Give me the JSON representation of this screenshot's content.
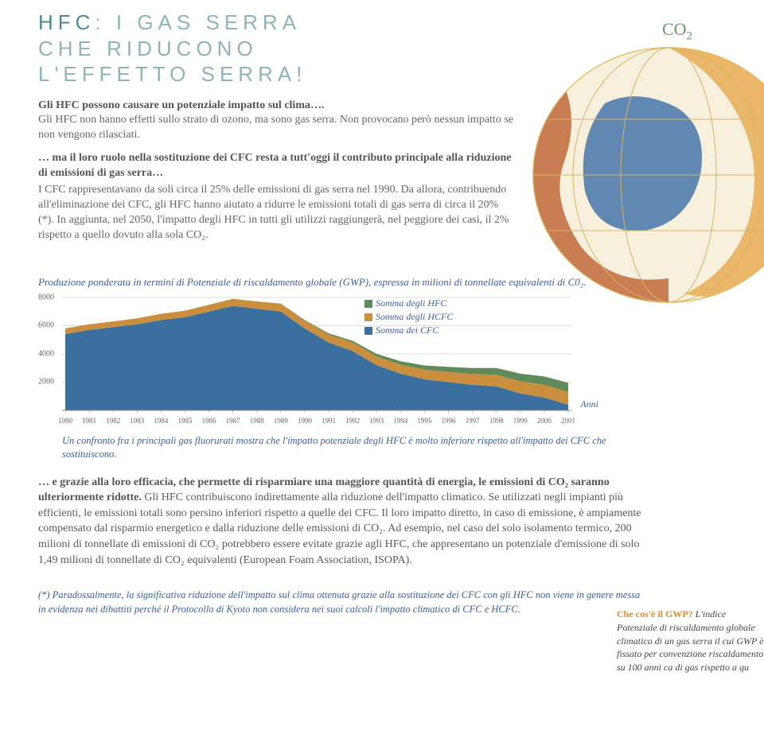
{
  "title": {
    "line1_accent": "HFC",
    "line1_rest": ": I GAS SERRA",
    "line2": "CHE RIDUCONO",
    "line3": "L'EFFETTO SERRA!",
    "accent_color": "#4d8c93",
    "rest_color": "#8db4b8"
  },
  "intro": {
    "bold1": "Gli HFC possono causare un potenziale impatto sul clima….",
    "plain1": "Gli HFC non hanno effetti sullo strato di ozono, ma sono gas serra. Non provocano però nessun impatto se non vengono rilasciati.",
    "bold2": "… ma il loro ruolo nella sostituzione dei CFC resta a tutt'oggi il contributo principale alla riduzione di emissioni di gas serra…",
    "body2": "I CFC rappresentavano da soli circa il 25% delle emissioni di gas serra nel 1990. Da allora, contribuendo all'eliminazione dei CFC, gli HFC hanno aiutato a ridurre le emissioni totali di gas serra di circa il 20% (*). In aggiunta, nel 2050, l'impatto degli HFC in tutti gli utilizzi raggiungerà, nel peggiore dei casi, il 2% rispetto a quello dovuto alla sola CO₂."
  },
  "co2_label": "CO",
  "chart": {
    "title": "Produzione ponderata in termini di Potenziale di riscaldamento globale (GWP), espressa in milioni di tonnellate equivalenti di C0₂.",
    "y_ticks": [
      8000,
      6000,
      4000,
      2000
    ],
    "y_max": 8000,
    "x_years": [
      "1980",
      "1981",
      "1982",
      "1983",
      "1984",
      "1985",
      "1986",
      "1987",
      "1988",
      "1989",
      "1990",
      "1991",
      "1992",
      "1993",
      "1994",
      "1995",
      "1996",
      "1997",
      "1998",
      "1999",
      "2000",
      "2001"
    ],
    "axis_label": "Anni",
    "legend": [
      {
        "label": "Somma degli HFC",
        "color": "#5f8a5a"
      },
      {
        "label": "Somma degli HCFC",
        "color": "#c98f3f"
      },
      {
        "label": "Somma dei CFC",
        "color": "#3a6f9e"
      }
    ],
    "colors": {
      "cfc": "#3a6f9e",
      "hcfc": "#c98f3f",
      "hfc": "#5f8a5a"
    },
    "cfc_vals": [
      5400,
      5700,
      5900,
      6100,
      6400,
      6600,
      7000,
      7400,
      7200,
      7000,
      5800,
      4800,
      4200,
      3200,
      2600,
      2200,
      2000,
      1800,
      1700,
      1200,
      900,
      400
    ],
    "hcfc_vals": [
      400,
      400,
      400,
      420,
      440,
      460,
      480,
      500,
      520,
      540,
      560,
      580,
      600,
      620,
      640,
      680,
      720,
      780,
      820,
      860,
      900,
      900
    ],
    "hfc_vals": [
      0,
      0,
      0,
      0,
      0,
      0,
      0,
      0,
      0,
      20,
      40,
      80,
      120,
      180,
      240,
      300,
      360,
      420,
      480,
      540,
      600,
      650
    ],
    "caption": "Un confronto fra i principali gas fluorurati mostra che l'impatto potenziale degli HFC è molto inferiore rispetto all'impatto dei CFC che sostituiscono."
  },
  "body2": {
    "bold": "… e grazie alla loro efficacia, che permette di risparmiare una maggiore quantità di energia, le emissioni di CO₂ saranno ulteriormente ridotte.",
    "text": "Gli HFC contribuiscono indirettamente alla riduzione dell'impatto climatico. Se utilizzati negli impianti più efficienti, le emissioni totali sono persino inferiori rispetto a quelle dei CFC. Il loro impatto diretto, in caso di emissione, è ampiamente compensato dal risparmio energetico e dalla riduzione delle emissioni di CO₂. Ad esempio, nel caso del solo isolamento termico, 200 milioni di tonnellate di emissioni di CO₂ potrebbero essere evitate grazie agli HFC, che appresentano un potenziale d'emissione di solo 1,49 milioni di tonnellate di CO₂ equivalenti (European Foam Association, ISOPA)."
  },
  "sidebar": {
    "q": "Che cos'è il GWP?",
    "text": " L'indice Potenziale di riscaldamento globale climatico di un gas serra il cui GWP è fissato per convenzione riscaldamento su 100 anni ca di gas rispetto a qu"
  },
  "footnote": "(*) Paradossalmente, la significativa riduzione dell'impatto sul clima ottenuta grazie alla sostituzione dei CFC con gli HFC non viene in genere messa in evidenza nei dibattiti perché il Protocollo di Kyoto non considera nei suoi calcoli l'impatto climatico di CFC e HCFC."
}
